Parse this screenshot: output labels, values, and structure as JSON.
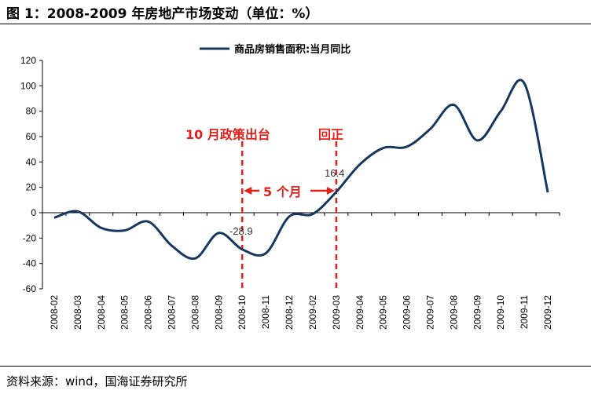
{
  "header": {
    "title": "图 1：2008-2009 年房地产市场变动（单位：%）"
  },
  "footer": {
    "source": "资料来源：wind，国海证券研究所"
  },
  "annotations": {
    "policy": "10 月政策出台",
    "turn": "回正",
    "gap": "5 个月",
    "low_label": "-28.9",
    "high_label": "16.4"
  },
  "colors": {
    "series": "#17375e",
    "annotation": "#e0201b"
  },
  "chart_data": {
    "type": "line",
    "title": "",
    "xlabel": "",
    "ylabel": "",
    "ylim": [
      -60,
      120
    ],
    "yticks": [
      -60,
      -40,
      -20,
      0,
      20,
      40,
      60,
      80,
      100,
      120
    ],
    "grid": false,
    "legend_position": "top-center",
    "categories": [
      "2008-02",
      "2008-03",
      "2008-04",
      "2008-05",
      "2008-06",
      "2008-07",
      "2008-08",
      "2008-09",
      "2008-10",
      "2008-11",
      "2008-12",
      "2009-02",
      "2009-03",
      "2009-04",
      "2009-05",
      "2009-06",
      "2009-07",
      "2009-08",
      "2009-09",
      "2009-10",
      "2009-11",
      "2009-12"
    ],
    "series": [
      {
        "name": "商品房销售面积:当月同比",
        "values": [
          -4,
          1,
          -12,
          -14,
          -7,
          -26,
          -36,
          -16,
          -28.9,
          -32,
          -3,
          -1,
          16.4,
          38,
          51,
          52,
          66,
          85,
          57,
          80,
          102,
          16
        ]
      }
    ],
    "markers": [
      {
        "category": "2008-10"
      },
      {
        "category": "2009-03"
      }
    ]
  }
}
